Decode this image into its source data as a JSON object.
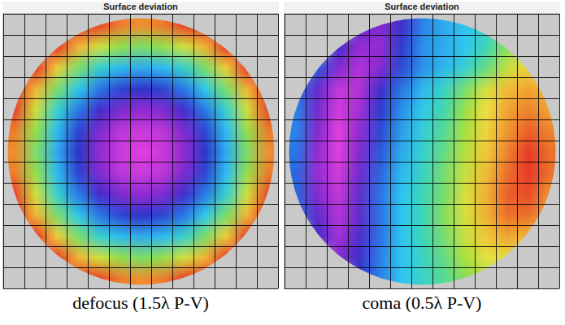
{
  "chart_data": [
    {
      "type": "heatmap",
      "title": "Surface deviation",
      "caption": "defocus (1.5λ P-V)",
      "xlim": [
        0,
        13
      ],
      "ylim": [
        0,
        13
      ],
      "xticks": [
        0,
        1,
        2,
        3,
        4,
        5,
        6,
        7,
        8,
        9,
        10,
        11,
        12,
        13
      ],
      "yticks": [
        0,
        1,
        2,
        3,
        4,
        5,
        6,
        7,
        8,
        9,
        10,
        11,
        12,
        13
      ],
      "grid": true,
      "tick_labels": false,
      "color_range": [
        0,
        1.5
      ],
      "cells": [
        [
          null,
          null,
          null,
          1.5,
          1.48,
          1.39,
          1.36,
          1.39,
          1.48,
          1.5,
          null,
          null,
          null
        ],
        [
          null,
          null,
          1.5,
          1.28,
          1.1,
          0.98,
          0.94,
          0.98,
          1.1,
          1.28,
          1.5,
          null,
          null
        ],
        [
          null,
          1.5,
          1.22,
          0.94,
          0.76,
          0.64,
          0.6,
          0.64,
          0.76,
          0.94,
          1.22,
          1.5,
          null
        ],
        [
          1.5,
          1.28,
          0.94,
          0.68,
          0.49,
          0.38,
          0.34,
          0.38,
          0.49,
          0.68,
          0.94,
          1.28,
          1.5
        ],
        [
          1.48,
          1.1,
          0.76,
          0.49,
          0.3,
          0.19,
          0.15,
          0.19,
          0.3,
          0.49,
          0.76,
          1.1,
          1.48
        ],
        [
          1.39,
          0.98,
          0.64,
          0.38,
          0.19,
          0.07,
          0.04,
          0.07,
          0.19,
          0.38,
          0.64,
          0.98,
          1.39
        ],
        [
          1.36,
          0.94,
          0.6,
          0.34,
          0.15,
          0.04,
          0.0,
          0.04,
          0.15,
          0.34,
          0.6,
          0.94,
          1.36
        ],
        [
          1.39,
          0.98,
          0.64,
          0.38,
          0.19,
          0.07,
          0.04,
          0.07,
          0.19,
          0.38,
          0.64,
          0.98,
          1.39
        ],
        [
          1.48,
          1.1,
          0.76,
          0.49,
          0.3,
          0.19,
          0.15,
          0.19,
          0.3,
          0.49,
          0.76,
          1.1,
          1.48
        ],
        [
          1.5,
          1.28,
          0.94,
          0.68,
          0.49,
          0.38,
          0.34,
          0.38,
          0.49,
          0.68,
          0.94,
          1.28,
          1.5
        ],
        [
          null,
          1.5,
          1.22,
          0.94,
          0.76,
          0.64,
          0.6,
          0.64,
          0.76,
          0.94,
          1.22,
          1.5,
          null
        ],
        [
          null,
          null,
          1.5,
          1.28,
          1.1,
          0.98,
          0.94,
          0.98,
          1.1,
          1.28,
          1.5,
          null,
          null
        ],
        [
          null,
          null,
          null,
          1.5,
          1.48,
          1.39,
          1.36,
          1.39,
          1.48,
          1.5,
          null,
          null,
          null
        ]
      ]
    },
    {
      "type": "heatmap",
      "title": "Surface deviation",
      "caption": "coma (0.5λ P-V)",
      "xlim": [
        0,
        13
      ],
      "ylim": [
        0,
        13
      ],
      "xticks": [
        0,
        1,
        2,
        3,
        4,
        5,
        6,
        7,
        8,
        9,
        10,
        11,
        12,
        13
      ],
      "yticks": [
        0,
        1,
        2,
        3,
        4,
        5,
        6,
        7,
        8,
        9,
        10,
        11,
        12,
        13
      ],
      "grid": true,
      "tick_labels": false,
      "color_range": [
        0,
        0.5
      ],
      "cells": [
        [
          null,
          null,
          null,
          0.08,
          0.06,
          0.1,
          0.17,
          0.2,
          0.22,
          0.26,
          null,
          null,
          null
        ],
        [
          null,
          null,
          0.1,
          0.05,
          0.05,
          0.12,
          0.18,
          0.2,
          0.22,
          0.27,
          0.32,
          null,
          null
        ],
        [
          null,
          0.14,
          0.06,
          0.03,
          0.06,
          0.13,
          0.18,
          0.21,
          0.25,
          0.3,
          0.36,
          0.4,
          null
        ],
        [
          0.16,
          0.08,
          0.02,
          0.03,
          0.1,
          0.16,
          0.21,
          0.26,
          0.31,
          0.37,
          0.42,
          0.44,
          0.42
        ],
        [
          0.17,
          0.07,
          0.01,
          0.04,
          0.12,
          0.18,
          0.23,
          0.28,
          0.33,
          0.39,
          0.44,
          0.46,
          0.44
        ],
        [
          0.17,
          0.06,
          0.0,
          0.05,
          0.13,
          0.19,
          0.24,
          0.29,
          0.34,
          0.4,
          0.45,
          0.48,
          0.46
        ],
        [
          0.16,
          0.05,
          0.0,
          0.06,
          0.14,
          0.2,
          0.25,
          0.3,
          0.35,
          0.41,
          0.46,
          0.5,
          0.47
        ],
        [
          0.15,
          0.05,
          0.01,
          0.07,
          0.15,
          0.21,
          0.26,
          0.31,
          0.36,
          0.42,
          0.47,
          0.5,
          0.47
        ],
        [
          0.15,
          0.06,
          0.02,
          0.08,
          0.16,
          0.22,
          0.27,
          0.31,
          0.37,
          0.43,
          0.48,
          0.49,
          0.45
        ],
        [
          0.16,
          0.08,
          0.03,
          0.08,
          0.16,
          0.22,
          0.27,
          0.32,
          0.37,
          0.43,
          0.47,
          0.47,
          0.43
        ],
        [
          null,
          0.1,
          0.04,
          0.09,
          0.16,
          0.22,
          0.27,
          0.31,
          0.36,
          0.41,
          0.44,
          0.42,
          null
        ],
        [
          null,
          null,
          0.06,
          0.1,
          0.17,
          0.22,
          0.26,
          0.3,
          0.34,
          0.38,
          0.38,
          null,
          null
        ],
        [
          null,
          null,
          null,
          0.12,
          0.17,
          0.22,
          0.26,
          0.29,
          0.32,
          0.34,
          null,
          null,
          null
        ]
      ]
    }
  ]
}
